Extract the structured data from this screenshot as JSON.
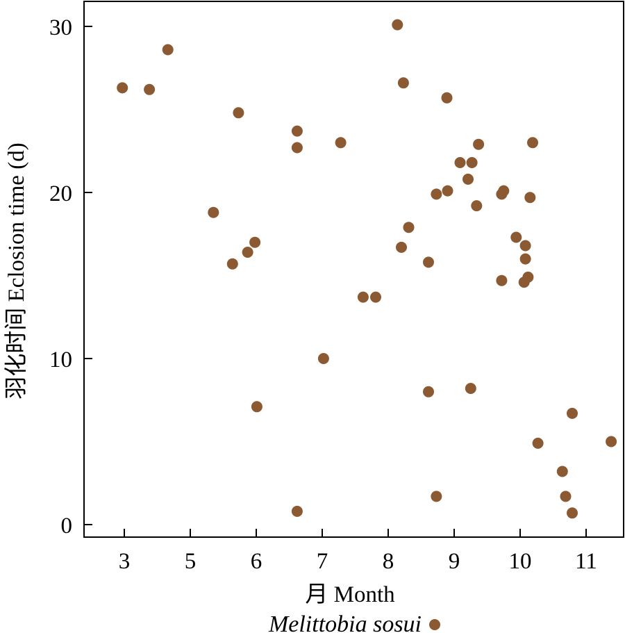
{
  "chart_data": {
    "type": "scatter",
    "xlabel": "月 Month",
    "ylabel": "羽化时间 Eclosion time (d)",
    "x_ticks": [
      {
        "label": "3",
        "value": 3.0
      },
      {
        "label": "5",
        "value": 4.0
      },
      {
        "label": "6",
        "value": 5.0
      },
      {
        "label": "7",
        "value": 6.0
      },
      {
        "label": "8",
        "value": 7.0
      },
      {
        "label": "9",
        "value": 8.0
      },
      {
        "label": "10",
        "value": 9.0
      },
      {
        "label": "11",
        "value": 10.0
      }
    ],
    "y_ticks": [
      0,
      10,
      20,
      30
    ],
    "xlim": [
      2.4,
      10.6
    ],
    "ylim": [
      -0.8,
      32.3
    ],
    "grid": false,
    "legend_position": "bottom",
    "marker_color": "#8b5a32",
    "series": [
      {
        "name": "Melittobia sosui",
        "points": [
          [
            2.97,
            26.3
          ],
          [
            3.38,
            26.2
          ],
          [
            3.66,
            28.6
          ],
          [
            4.35,
            18.8
          ],
          [
            4.64,
            15.7
          ],
          [
            4.73,
            24.8
          ],
          [
            4.87,
            16.4
          ],
          [
            4.98,
            17.0
          ],
          [
            5.01,
            7.1
          ],
          [
            5.62,
            23.7
          ],
          [
            5.62,
            22.7
          ],
          [
            5.62,
            0.8
          ],
          [
            6.02,
            10.0
          ],
          [
            6.28,
            23.0
          ],
          [
            6.62,
            13.7
          ],
          [
            6.81,
            13.7
          ],
          [
            7.14,
            30.1
          ],
          [
            7.2,
            16.7
          ],
          [
            7.23,
            26.6
          ],
          [
            7.31,
            17.9
          ],
          [
            7.61,
            15.8
          ],
          [
            7.61,
            8.0
          ],
          [
            7.73,
            19.9
          ],
          [
            7.73,
            1.7
          ],
          [
            7.89,
            25.7
          ],
          [
            7.9,
            20.1
          ],
          [
            8.09,
            21.8
          ],
          [
            8.21,
            20.8
          ],
          [
            8.25,
            8.2
          ],
          [
            8.27,
            21.8
          ],
          [
            8.34,
            19.2
          ],
          [
            8.37,
            22.9
          ],
          [
            8.72,
            19.9
          ],
          [
            8.72,
            14.7
          ],
          [
            8.75,
            20.1
          ],
          [
            8.94,
            17.3
          ],
          [
            9.06,
            14.6
          ],
          [
            9.08,
            16.8
          ],
          [
            9.08,
            16.0
          ],
          [
            9.12,
            14.9
          ],
          [
            9.15,
            19.7
          ],
          [
            9.19,
            23.0
          ],
          [
            9.27,
            4.9
          ],
          [
            9.64,
            3.2
          ],
          [
            9.69,
            1.7
          ],
          [
            9.79,
            6.7
          ],
          [
            9.79,
            0.7
          ],
          [
            10.38,
            5.0
          ]
        ]
      }
    ]
  }
}
